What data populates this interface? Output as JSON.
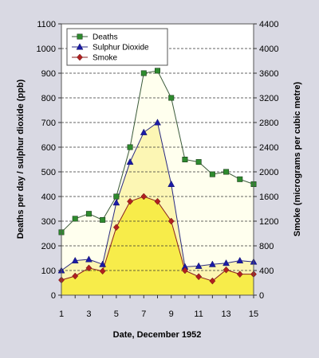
{
  "chart_data": {
    "type": "line",
    "xlabel": "Date, December 1952",
    "ylabel_left": "Deaths per day / sulphur dioxide (ppb)",
    "ylabel_right": "Smoke (micrograms per cubic metre)",
    "x": [
      1,
      2,
      3,
      4,
      5,
      6,
      7,
      8,
      9,
      10,
      11,
      12,
      13,
      14,
      15
    ],
    "x_ticks": [
      "1",
      "3",
      "5",
      "7",
      "9",
      "11",
      "13",
      "15"
    ],
    "x_tick_values": [
      1,
      3,
      5,
      7,
      9,
      11,
      13,
      15
    ],
    "ylim_left": [
      0,
      1100
    ],
    "ylim_right": [
      0,
      4400
    ],
    "y_ticks_left": [
      "0",
      "100",
      "200",
      "300",
      "400",
      "500",
      "600",
      "700",
      "800",
      "900",
      "1000",
      "1100"
    ],
    "y_ticks_right": [
      "0",
      "400",
      "800",
      "1200",
      "1600",
      "2000",
      "2400",
      "2800",
      "3200",
      "3600",
      "4000",
      "4400"
    ],
    "grid": "horizontal dashed",
    "legend_position": "top-left",
    "series": [
      {
        "name": "Deaths",
        "axis": "left",
        "marker": "square",
        "color": "#2e8b2e",
        "line_color": "#3a5a3a",
        "fill_color": "#ffffee",
        "values": [
          255,
          310,
          330,
          305,
          400,
          600,
          900,
          910,
          800,
          550,
          540,
          490,
          500,
          470,
          450
        ]
      },
      {
        "name": "Sulphur Dioxide",
        "axis": "left",
        "marker": "triangle",
        "color": "#1a1aa6",
        "line_color": "#2a2a80",
        "fill_color": "#fcf6b4",
        "values": [
          100,
          140,
          145,
          125,
          375,
          540,
          660,
          700,
          450,
          115,
          118,
          125,
          130,
          140,
          135
        ]
      },
      {
        "name": "Smoke",
        "axis": "right",
        "marker": "diamond",
        "color": "#b02020",
        "line_color": "#8a2020",
        "fill_color": "#f7ec4a",
        "values": [
          245,
          310,
          440,
          390,
          1100,
          1520,
          1600,
          1520,
          1200,
          400,
          300,
          230,
          410,
          340,
          340
        ]
      }
    ]
  }
}
